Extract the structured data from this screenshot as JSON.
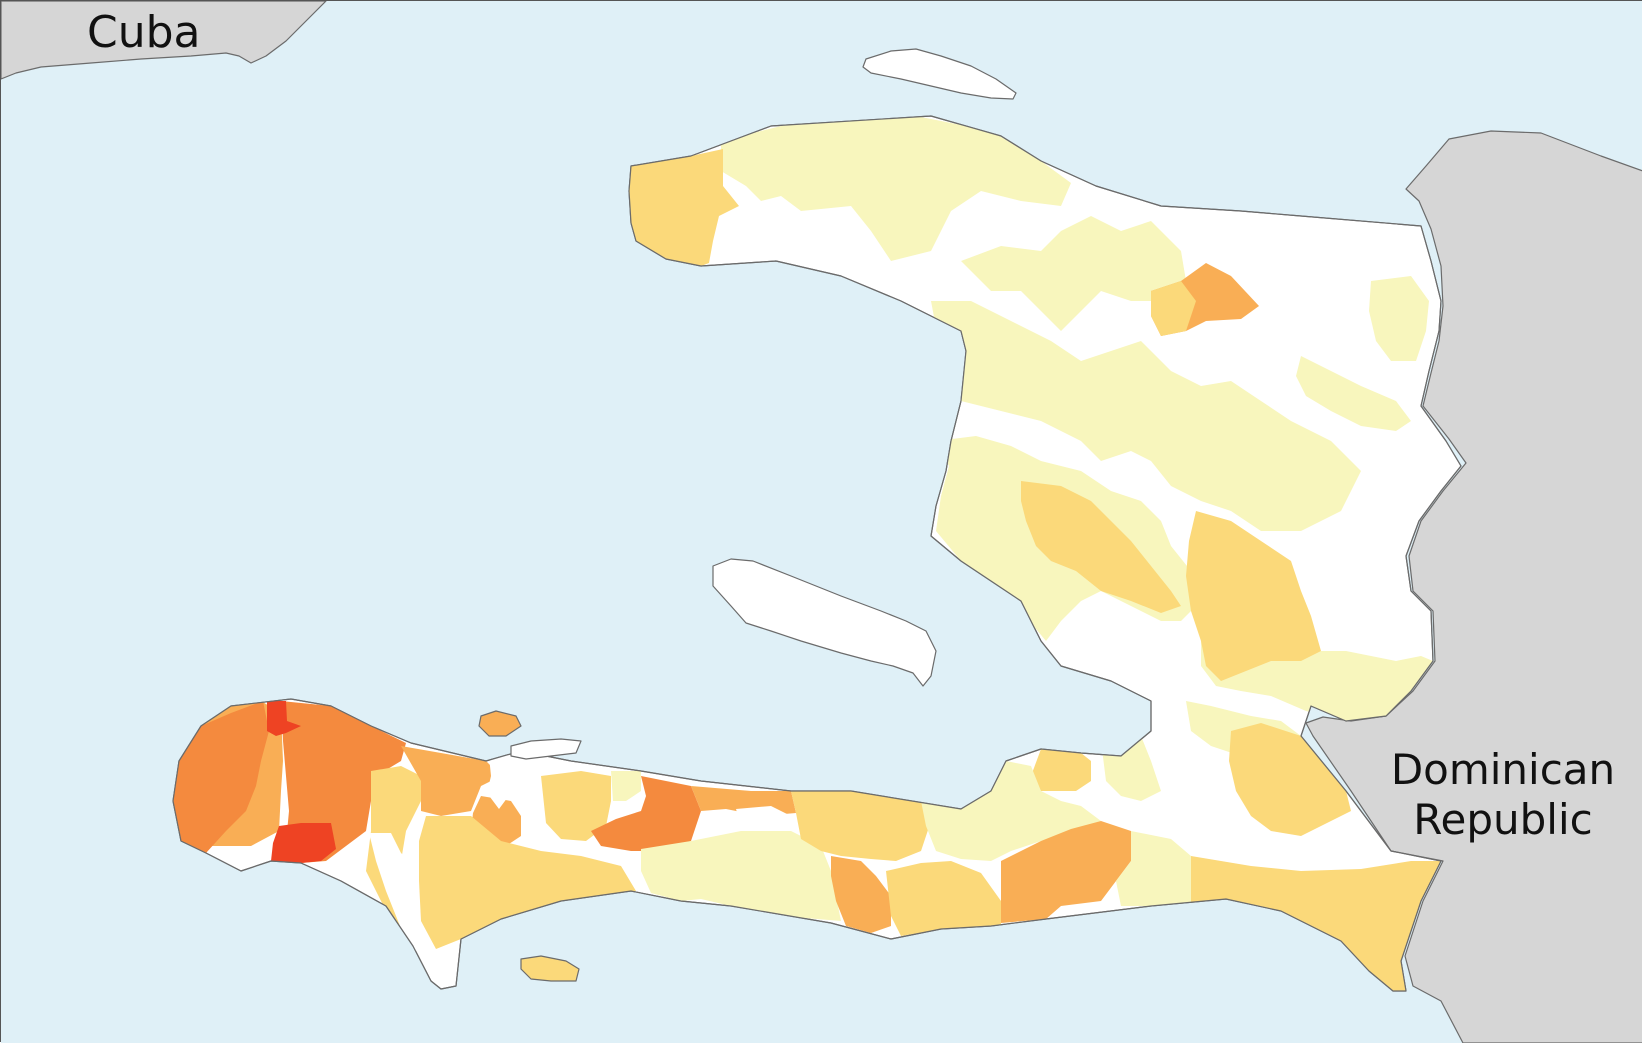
{
  "map": {
    "labels": {
      "cuba": "Cuba",
      "dr_line1": "Dominican",
      "dr_line2": "Republic"
    },
    "colors": {
      "sea": "#dff0f7",
      "foreign_land": "#d6d6d6",
      "coast_stroke": "#6b6b6b",
      "white": "#ffffff",
      "pale_yellow": "#f8f6bd",
      "light_orange": "#fbd97a",
      "orange": "#f9ae55",
      "dark_orange": "#f48a3e",
      "red": "#ee4323"
    }
  }
}
